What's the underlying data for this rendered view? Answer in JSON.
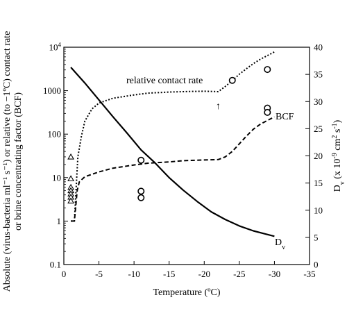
{
  "chart_data": {
    "type": "line",
    "x_axis": {
      "label": "Temperature (ºC)",
      "range": [
        0,
        -35
      ],
      "ticks": [
        0,
        -5,
        -10,
        -15,
        -20,
        -25,
        -30,
        -35
      ],
      "tick_labels": [
        "0",
        "-5",
        "-10",
        "-15",
        "-20",
        "-25",
        "-30",
        "-35"
      ]
    },
    "y_left": {
      "label_lines": [
        "Absolute (virus-bacteria ml⁻¹ s⁻¹) or relative (to −1ºC) contact rate",
        "or brine concentrating factor (BCF)"
      ],
      "scale": "log",
      "range": [
        0.1,
        10000
      ],
      "ticks": [
        0.1,
        1,
        10,
        100,
        1000,
        10000
      ],
      "tick_labels": [
        "0.1",
        "1",
        "10",
        "100",
        "1000",
        ""
      ],
      "top_tick_label": {
        "base": "10",
        "exp": "4"
      }
    },
    "y_right": {
      "label": {
        "d": "D",
        "sub": "v",
        "rest": " (x 10",
        "exp": "-9",
        "units": " cm",
        "exp2": "2",
        "tail": " s",
        "exp3": "-1",
        "close": ")"
      },
      "range": [
        0,
        40
      ],
      "ticks": [
        0,
        5,
        10,
        15,
        20,
        25,
        30,
        35,
        40
      ],
      "tick_labels": [
        "0",
        "5",
        "10",
        "15",
        "20",
        "25",
        "30",
        "35",
        "40"
      ]
    },
    "series": [
      {
        "name": "D",
        "name_sub": "v",
        "axis": "right",
        "style": "solid",
        "x": [
          -1,
          -3,
          -5,
          -7,
          -9,
          -11,
          -13,
          -15,
          -17,
          -19,
          -21,
          -23,
          -25,
          -27,
          -30
        ],
        "y": [
          36.3,
          33.4,
          30.3,
          27.2,
          24.2,
          21.1,
          18.7,
          16.0,
          13.7,
          11.6,
          9.7,
          8.3,
          7.1,
          6.2,
          5.2
        ]
      },
      {
        "name": "relative contact rate",
        "axis": "left",
        "style": "dotted",
        "x": [
          -1,
          -1.5,
          -1.8,
          -2,
          -2.5,
          -3,
          -4,
          -5,
          -7,
          -10,
          -12,
          -15,
          -18,
          -20,
          -22,
          -23,
          -24,
          -25,
          -26,
          -27,
          -28,
          -30
        ],
        "y": [
          1,
          1,
          8,
          30,
          90,
          200,
          380,
          520,
          670,
          800,
          880,
          930,
          960,
          970,
          950,
          1250,
          1700,
          2400,
          3200,
          4200,
          5300,
          7800
        ]
      },
      {
        "name": "BCF",
        "axis": "left",
        "style": "dashed",
        "x": [
          -1,
          -1.5,
          -1.9,
          -2.2,
          -3,
          -5,
          -7,
          -10,
          -12,
          -15,
          -17,
          -20,
          -22,
          -23,
          -24,
          -25,
          -26,
          -27,
          -28,
          -30
        ],
        "y": [
          1,
          1,
          5,
          8,
          10.5,
          13.5,
          16.5,
          19.5,
          21.5,
          23,
          24.5,
          25.5,
          26,
          30,
          40,
          60,
          90,
          130,
          170,
          250
        ]
      }
    ],
    "markers": {
      "circles_right_axis": [
        {
          "x": -11,
          "y": 19.2
        },
        {
          "x": -11,
          "y": 13.5
        },
        {
          "x": -11,
          "y": 12.3
        },
        {
          "x": -24,
          "y": 33.9
        },
        {
          "x": -29,
          "y": 35.9
        },
        {
          "x": -29,
          "y": 28.8
        },
        {
          "x": -29,
          "y": 28.0
        }
      ],
      "triangles_right_axis": [
        {
          "x": -1,
          "y": 19.8
        },
        {
          "x": -1,
          "y": 15.8
        },
        {
          "x": -1,
          "y": 14.2
        },
        {
          "x": -1,
          "y": 13.6
        },
        {
          "x": -1,
          "y": 13.0
        },
        {
          "x": -1,
          "y": 12.4
        },
        {
          "x": -1,
          "y": 11.7
        }
      ]
    },
    "annotations": [
      {
        "text": "relative contact rate",
        "target_series": "relative contact rate"
      },
      {
        "text": "BCF",
        "target_series": "BCF"
      },
      {
        "text": "↑",
        "at_x": -22
      }
    ]
  }
}
